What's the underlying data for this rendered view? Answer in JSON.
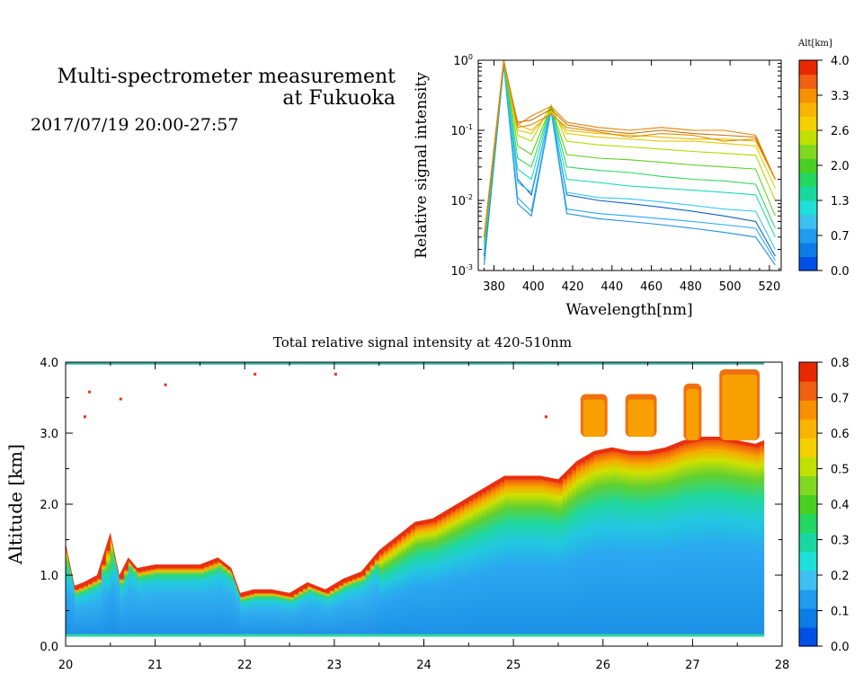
{
  "header": {
    "title_line1": "Multi-spectrometer measurement",
    "title_line2": "at Fukuoka",
    "datetime": "2017/07/19 20:00-27:57"
  },
  "colors": {
    "scale": [
      "#0050e8",
      "#0a7ee6",
      "#1e9cf0",
      "#3cc0f0",
      "#1ee0d8",
      "#18d8a0",
      "#22d860",
      "#48d020",
      "#80d820",
      "#c0e000",
      "#f4d000",
      "#f8b400",
      "#f89000",
      "#f06010",
      "#e82800"
    ]
  },
  "chart_data": [
    {
      "type": "line",
      "xlabel": "Wavelength[nm]",
      "ylabel": "Relative signal intensity",
      "xlim": [
        372,
        526
      ],
      "ylim": [
        0.001,
        1
      ],
      "yscale": "log",
      "grid": false,
      "xticks": [
        "380",
        "400",
        "420",
        "440",
        "460",
        "480",
        "500",
        "520"
      ],
      "yticks": [
        "10^-3",
        "10^-2",
        "10^-1",
        "10^0"
      ],
      "x": [
        375,
        385,
        392,
        399,
        409,
        417,
        433,
        449,
        465,
        481,
        497,
        513,
        523
      ],
      "colorbar": {
        "title": "Alt[km]",
        "ticks": [
          "0.0",
          "0.7",
          "1.3",
          "2.0",
          "2.6",
          "3.3",
          "4.0"
        ],
        "range": [
          0,
          4
        ]
      },
      "series": [
        {
          "alt": 0.3,
          "color": "#1e8ee8",
          "values": [
            0.0012,
            0.85,
            0.009,
            0.006,
            0.19,
            0.0065,
            0.0055,
            0.005,
            0.0045,
            0.004,
            0.0035,
            0.003,
            0.0012
          ]
        },
        {
          "alt": 0.5,
          "color": "#28a8f0",
          "values": [
            0.0014,
            0.88,
            0.011,
            0.007,
            0.2,
            0.0075,
            0.0065,
            0.006,
            0.0055,
            0.005,
            0.0045,
            0.004,
            0.0014
          ]
        },
        {
          "alt": 0.8,
          "color": "#1060c0",
          "values": [
            0.0016,
            0.9,
            0.02,
            0.012,
            0.21,
            0.012,
            0.01,
            0.009,
            0.008,
            0.007,
            0.006,
            0.005,
            0.0016
          ]
        },
        {
          "alt": 1.1,
          "color": "#30c8f0",
          "values": [
            0.0018,
            0.92,
            0.018,
            0.013,
            0.21,
            0.013,
            0.011,
            0.0105,
            0.0095,
            0.0085,
            0.0075,
            0.007,
            0.002
          ]
        },
        {
          "alt": 1.4,
          "color": "#20d8c0",
          "values": [
            0.002,
            0.93,
            0.028,
            0.02,
            0.22,
            0.02,
            0.018,
            0.016,
            0.015,
            0.014,
            0.013,
            0.012,
            0.003
          ]
        },
        {
          "alt": 1.7,
          "color": "#30d860",
          "values": [
            0.0023,
            0.94,
            0.04,
            0.03,
            0.22,
            0.03,
            0.027,
            0.025,
            0.022,
            0.02,
            0.019,
            0.017,
            0.004
          ]
        },
        {
          "alt": 2.0,
          "color": "#60d020",
          "values": [
            0.0026,
            0.95,
            0.06,
            0.045,
            0.22,
            0.045,
            0.04,
            0.038,
            0.035,
            0.032,
            0.03,
            0.028,
            0.006
          ]
        },
        {
          "alt": 2.3,
          "color": "#b0d800",
          "values": [
            0.003,
            0.96,
            0.085,
            0.07,
            0.23,
            0.07,
            0.062,
            0.058,
            0.054,
            0.05,
            0.047,
            0.044,
            0.01
          ]
        },
        {
          "alt": 2.7,
          "color": "#e8c800",
          "values": [
            0.003,
            0.97,
            0.1,
            0.09,
            0.19,
            0.09,
            0.08,
            0.075,
            0.07,
            0.07,
            0.065,
            0.06,
            0.015
          ]
        },
        {
          "alt": 3.0,
          "color": "#f0b400",
          "values": [
            0.003,
            0.97,
            0.12,
            0.1,
            0.18,
            0.1,
            0.09,
            0.085,
            0.08,
            0.075,
            0.075,
            0.07,
            0.02
          ]
        },
        {
          "alt": 3.3,
          "color": "#d89000",
          "values": [
            0.003,
            0.98,
            0.11,
            0.12,
            0.17,
            0.11,
            0.095,
            0.08,
            0.09,
            0.085,
            0.07,
            0.075,
            0.02
          ]
        },
        {
          "alt": 3.7,
          "color": "#c87000",
          "values": [
            0.003,
            0.98,
            0.13,
            0.14,
            0.2,
            0.12,
            0.1,
            0.09,
            0.1,
            0.09,
            0.085,
            0.08,
            0.02
          ]
        },
        {
          "alt": 3.9,
          "color": "#e88000",
          "values": [
            0.003,
            0.98,
            0.12,
            0.16,
            0.22,
            0.13,
            0.11,
            0.1,
            0.11,
            0.1,
            0.1,
            0.085,
            0.02
          ]
        }
      ]
    },
    {
      "type": "heatmap",
      "title": "Total relative signal intensity at 420-510nm",
      "xlabel": "",
      "ylabel": "Altitude [km]",
      "xlim": [
        20,
        28
      ],
      "ylim": [
        0,
        4
      ],
      "xticks": [
        "20",
        "21",
        "22",
        "23",
        "24",
        "25",
        "26",
        "27",
        "28"
      ],
      "yticks": [
        "0.0",
        "1.0",
        "2.0",
        "3.0",
        "4.0"
      ],
      "colorbar": {
        "ticks": [
          "0.0",
          "0.1",
          "0.2",
          "0.3",
          "0.4",
          "0.5",
          "0.6",
          "0.7",
          "0.8"
        ],
        "range": [
          0,
          0.8
        ]
      },
      "data_end_hour": 27.8,
      "cloud_base_km": {
        "hours": [
          20.0,
          20.1,
          20.2,
          20.35,
          20.5,
          20.6,
          20.7,
          20.8,
          21.0,
          21.2,
          21.5,
          21.7,
          21.85,
          21.95,
          22.1,
          22.3,
          22.5,
          22.7,
          22.9,
          23.1,
          23.3,
          23.5,
          23.7,
          23.9,
          24.1,
          24.3,
          24.5,
          24.7,
          24.9,
          25.1,
          25.3,
          25.5,
          25.7,
          25.9,
          26.1,
          26.3,
          26.5,
          26.7,
          26.9,
          27.1,
          27.3,
          27.5,
          27.7,
          27.8
        ],
        "values": [
          1.4,
          0.8,
          0.85,
          0.95,
          1.55,
          0.95,
          1.2,
          1.05,
          1.1,
          1.1,
          1.1,
          1.2,
          1.05,
          0.7,
          0.75,
          0.75,
          0.7,
          0.85,
          0.75,
          0.9,
          1.0,
          1.3,
          1.5,
          1.7,
          1.75,
          1.9,
          2.05,
          2.2,
          2.35,
          2.35,
          2.35,
          2.3,
          2.55,
          2.7,
          2.75,
          2.7,
          2.7,
          2.75,
          2.85,
          2.9,
          2.9,
          2.85,
          2.8,
          2.85
        ]
      },
      "upper_clouds": [
        {
          "h0": 25.75,
          "h1": 26.05,
          "bottom": 2.95,
          "top": 3.55
        },
        {
          "h0": 26.25,
          "h1": 26.6,
          "bottom": 2.95,
          "top": 3.55
        },
        {
          "h0": 26.9,
          "h1": 27.1,
          "bottom": 2.9,
          "top": 3.7
        },
        {
          "h0": 27.3,
          "h1": 27.75,
          "bottom": 2.9,
          "top": 3.9
        }
      ]
    }
  ]
}
